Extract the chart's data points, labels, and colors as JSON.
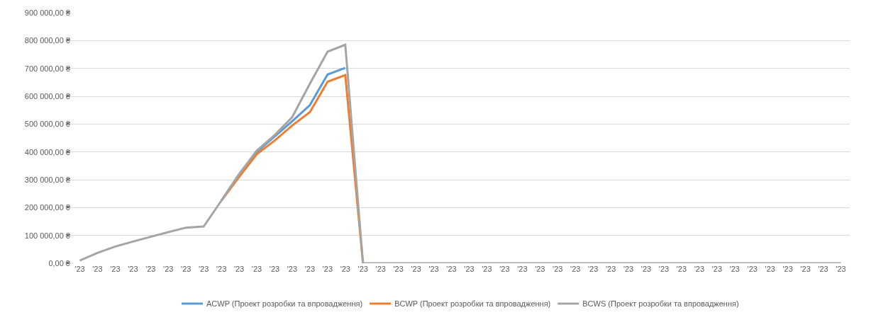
{
  "chart_data": {
    "type": "line",
    "categories": [
      "'23",
      "'23",
      "'23",
      "'23",
      "'23",
      "'23",
      "'23",
      "'23",
      "'23",
      "'23",
      "'23",
      "'23",
      "'23",
      "'23",
      "'23",
      "'23",
      "'23",
      "'23",
      "'23",
      "'23",
      "'23",
      "'23",
      "'23",
      "'23",
      "'23",
      "'23",
      "'23",
      "'23",
      "'23",
      "'23",
      "'23",
      "'23",
      "'23",
      "'23",
      "'23",
      "'23",
      "'23",
      "'23",
      "'23",
      "'23",
      "'23",
      "'23",
      "'23",
      "'23"
    ],
    "series": [
      {
        "name": "ACWP (Проект розробки та впровадження)",
        "color": "#5b9bd5",
        "values": [
          null,
          null,
          null,
          null,
          null,
          null,
          null,
          null,
          225000,
          320000,
          400000,
          455000,
          510000,
          568000,
          678000,
          702000,
          null,
          null,
          null,
          null,
          null,
          null,
          null,
          null,
          null,
          null,
          null,
          null,
          null,
          null,
          null,
          null,
          null,
          null,
          null,
          null,
          null,
          null,
          null,
          null,
          null,
          null,
          null,
          null
        ]
      },
      {
        "name": "BCWP (Проект розробки та впровадження)",
        "color": "#ed7d31",
        "values": [
          null,
          null,
          null,
          null,
          null,
          null,
          null,
          null,
          225000,
          310000,
          392000,
          440000,
          495000,
          543000,
          652000,
          676000,
          0,
          null,
          null,
          null,
          null,
          null,
          null,
          null,
          null,
          null,
          null,
          null,
          null,
          null,
          null,
          null,
          null,
          null,
          null,
          null,
          null,
          null,
          null,
          null,
          null,
          null,
          null,
          null
        ]
      },
      {
        "name": "BCWS (Проект розробки та впровадження)",
        "color": "#a5a5a5",
        "values": [
          10000,
          37000,
          60000,
          78000,
          95000,
          112000,
          128000,
          132000,
          225000,
          320000,
          405000,
          460000,
          525000,
          645000,
          760000,
          785000,
          0,
          0,
          0,
          0,
          0,
          0,
          0,
          0,
          0,
          0,
          0,
          0,
          0,
          0,
          0,
          0,
          0,
          0,
          0,
          0,
          0,
          0,
          0,
          0,
          0,
          0,
          0,
          0
        ]
      }
    ],
    "ylim": [
      0,
      900000
    ],
    "yticks": [
      {
        "value": 0,
        "label": "0,00 ₴"
      },
      {
        "value": 100000,
        "label": "100 000,00 ₴"
      },
      {
        "value": 200000,
        "label": "200 000,00 ₴"
      },
      {
        "value": 300000,
        "label": "300 000,00 ₴"
      },
      {
        "value": 400000,
        "label": "400 000,00 ₴"
      },
      {
        "value": 500000,
        "label": "500 000,00 ₴"
      },
      {
        "value": 600000,
        "label": "600 000,00 ₴"
      },
      {
        "value": 700000,
        "label": "700 000,00 ₴"
      },
      {
        "value": 800000,
        "label": "800 000,00 ₴"
      },
      {
        "value": 900000,
        "label": "900 000,00 ₴"
      }
    ],
    "grid": "y",
    "legend": "bottom",
    "marker": "none",
    "line_style": "solid"
  }
}
